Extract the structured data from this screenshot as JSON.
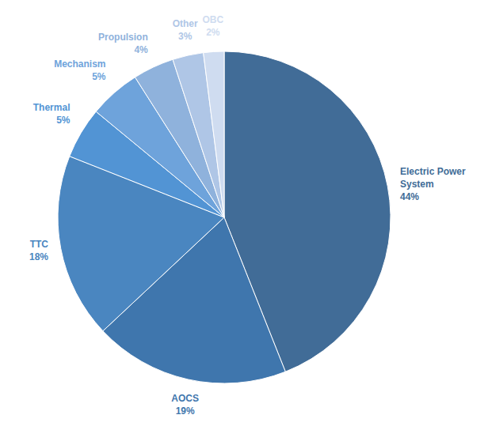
{
  "chart_data": {
    "type": "pie",
    "categories": [
      "Electric Power System",
      "AOCS",
      "TTC",
      "Thermal",
      "Mechanism",
      "Propulsion",
      "Other",
      "OBC"
    ],
    "values": [
      44,
      19,
      18,
      5,
      5,
      4,
      3,
      2
    ],
    "value_labels": [
      "44%",
      "19%",
      "18%",
      "5%",
      "5%",
      "4%",
      "3%",
      "2%"
    ],
    "colors": [
      "#416c97",
      "#3f76ad",
      "#4a86c0",
      "#5294d4",
      "#6ea3db",
      "#8fb2dc",
      "#afc6e6",
      "#cfdcf0"
    ],
    "data_labels": true
  }
}
